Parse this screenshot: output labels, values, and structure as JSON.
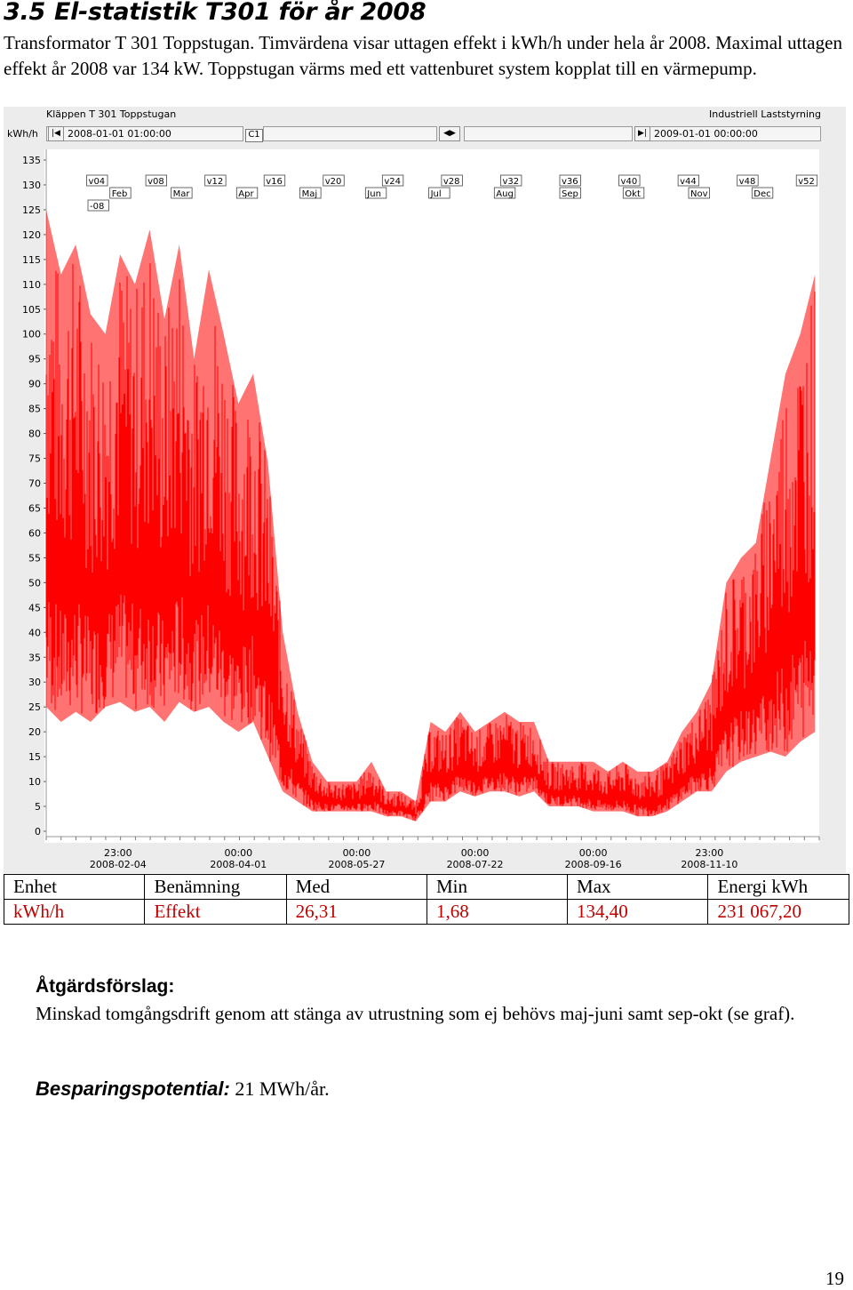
{
  "heading": {
    "number": "3.5",
    "title": "El-statistik T301 för år 2008"
  },
  "intro": "Transformator T 301 Toppstugan. Timvärdena visar uttagen effekt i kWh/h under hela år 2008. Maximal uttagen effekt år 2008 var 134 kW. Toppstugan värms med ett vattenburet system kopplat till en värmepump.",
  "chart_window": {
    "title": "Kläppen T 301 Toppstugan",
    "brand": "Industriell Laststyrning",
    "unit": "kWh/h",
    "start": "2008-01-01 01:00:00",
    "end": "2009-01-01 00:00:00",
    "cursor": "C1",
    "colors": {
      "series": "#ff0000",
      "background": "#ffffff",
      "frame": "#ececec"
    },
    "icons": [
      "first-page-icon",
      "scroll-arrows-icon",
      "last-page-icon"
    ]
  },
  "chart_data": {
    "type": "line",
    "title": "",
    "ylabel": "kWh/h",
    "xlabel": "",
    "ylim": [
      0,
      135
    ],
    "yticks": [
      0,
      5,
      10,
      15,
      20,
      25,
      30,
      35,
      40,
      45,
      50,
      55,
      60,
      65,
      70,
      75,
      80,
      85,
      90,
      95,
      100,
      105,
      110,
      115,
      120,
      125,
      130,
      135
    ],
    "xlim": [
      "2008-01-01",
      "2009-01-01"
    ],
    "xtick_times": [
      "23:00",
      "00:00",
      "00:00",
      "00:00",
      "00:00",
      "23:00"
    ],
    "xtick_dates": [
      "2008-02-04",
      "2008-04-01",
      "2008-05-27",
      "2008-07-22",
      "2008-09-16",
      "2008-11-10"
    ],
    "week_markers": [
      {
        "label": "v04",
        "date": "2008-01-21"
      },
      {
        "label": "v08",
        "date": "2008-02-18"
      },
      {
        "label": "v12",
        "date": "2008-03-17"
      },
      {
        "label": "v16",
        "date": "2008-04-14"
      },
      {
        "label": "v20",
        "date": "2008-05-12"
      },
      {
        "label": "v24",
        "date": "2008-06-09"
      },
      {
        "label": "v28",
        "date": "2008-07-07"
      },
      {
        "label": "v32",
        "date": "2008-08-04"
      },
      {
        "label": "v36",
        "date": "2008-09-01"
      },
      {
        "label": "v40",
        "date": "2008-09-29"
      },
      {
        "label": "v44",
        "date": "2008-10-27"
      },
      {
        "label": "v48",
        "date": "2008-11-24"
      },
      {
        "label": "v52",
        "date": "2008-12-22"
      }
    ],
    "month_markers": [
      {
        "label": "Feb",
        "date": "2008-02-01"
      },
      {
        "label": "Mar",
        "date": "2008-03-01"
      },
      {
        "label": "Apr",
        "date": "2008-04-01"
      },
      {
        "label": "Maj",
        "date": "2008-05-01"
      },
      {
        "label": "Jun",
        "date": "2008-06-01"
      },
      {
        "label": "Jul",
        "date": "2008-07-01"
      },
      {
        "label": "Aug",
        "date": "2008-08-01"
      },
      {
        "label": "Sep",
        "date": "2008-09-01"
      },
      {
        "label": "Okt",
        "date": "2008-10-01"
      },
      {
        "label": "Nov",
        "date": "2008-11-01"
      },
      {
        "label": "Dec",
        "date": "2008-12-01"
      }
    ],
    "year_marker": {
      "label": "-08",
      "date": "2008-01-01"
    },
    "series": [
      {
        "note": "approximate weekly envelope of hourly values",
        "x": [
          "2008-01-01",
          "2008-01-08",
          "2008-01-15",
          "2008-01-22",
          "2008-01-29",
          "2008-02-05",
          "2008-02-12",
          "2008-02-19",
          "2008-02-26",
          "2008-03-04",
          "2008-03-11",
          "2008-03-18",
          "2008-03-25",
          "2008-04-01",
          "2008-04-08",
          "2008-04-15",
          "2008-04-22",
          "2008-04-29",
          "2008-05-06",
          "2008-05-13",
          "2008-05-20",
          "2008-05-27",
          "2008-06-03",
          "2008-06-10",
          "2008-06-17",
          "2008-06-24",
          "2008-07-01",
          "2008-07-08",
          "2008-07-15",
          "2008-07-22",
          "2008-07-29",
          "2008-08-05",
          "2008-08-12",
          "2008-08-19",
          "2008-08-26",
          "2008-09-02",
          "2008-09-09",
          "2008-09-16",
          "2008-09-23",
          "2008-09-30",
          "2008-10-07",
          "2008-10-14",
          "2008-10-21",
          "2008-10-28",
          "2008-11-04",
          "2008-11-11",
          "2008-11-18",
          "2008-11-25",
          "2008-12-02",
          "2008-12-09",
          "2008-12-16",
          "2008-12-23",
          "2008-12-30"
        ],
        "max": [
          125,
          112,
          118,
          104,
          100,
          116,
          110,
          121,
          103,
          118,
          95,
          113,
          100,
          86,
          92,
          74,
          40,
          24,
          14,
          10,
          10,
          10,
          14,
          8,
          8,
          6,
          22,
          20,
          24,
          20,
          22,
          24,
          22,
          22,
          14,
          14,
          14,
          14,
          12,
          14,
          12,
          12,
          14,
          20,
          24,
          30,
          50,
          55,
          58,
          75,
          92,
          100,
          112
        ],
        "min": [
          25,
          22,
          24,
          22,
          25,
          26,
          24,
          25,
          22,
          26,
          24,
          25,
          22,
          20,
          22,
          15,
          8,
          6,
          4,
          4,
          4,
          4,
          4,
          3,
          3,
          2,
          6,
          6,
          8,
          7,
          8,
          8,
          7,
          8,
          5,
          5,
          5,
          4,
          4,
          4,
          3,
          3,
          4,
          6,
          8,
          8,
          12,
          14,
          15,
          16,
          15,
          18,
          20
        ]
      }
    ]
  },
  "stats_table": {
    "headers": [
      "Enhet",
      "Benämning",
      "Med",
      "Min",
      "Max",
      "Energi kWh"
    ],
    "values": [
      "kWh/h",
      "Effekt",
      "26,31",
      "1,68",
      "134,40",
      "231 067,20"
    ]
  },
  "action": {
    "title": "Åtgärdsförslag:",
    "text": "Minskad tomgångsdrift genom att stänga av utrustning som ej behövs maj-juni samt sep-okt (se graf)."
  },
  "savings": {
    "label": "Besparingspotential:",
    "value": "21 MWh/år."
  },
  "page_number": "19"
}
